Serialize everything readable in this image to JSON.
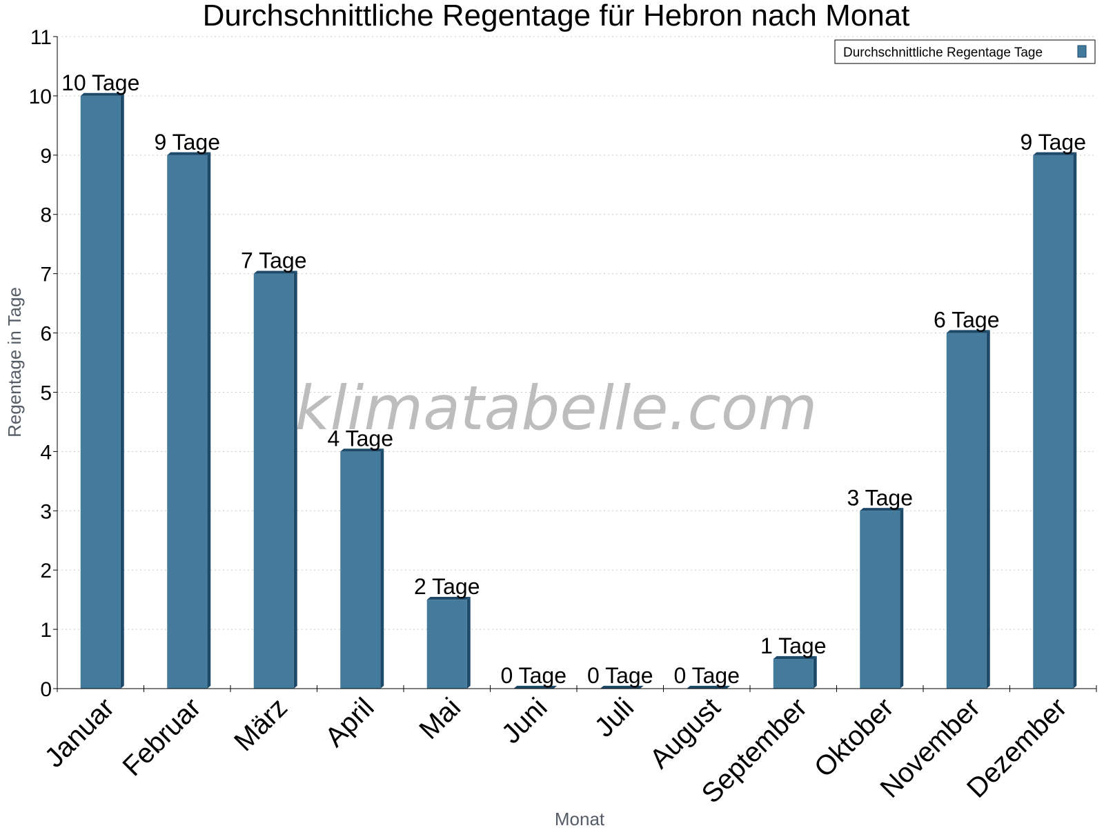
{
  "watermark": "klimatabelle.com",
  "colors": {
    "bar_face": "#447a9c",
    "bar_side": "#1e4a6a",
    "bar_top": "#1e4a6a",
    "grid": "#c8c8c8",
    "axis": "#000000"
  },
  "chart_data": {
    "type": "bar",
    "title": "Durchschnittliche Regentage für Hebron nach Monat",
    "xlabel": "Monat",
    "ylabel": "Regentage in Tage",
    "ylim": [
      0,
      11
    ],
    "yticks": [
      0,
      1,
      2,
      3,
      4,
      5,
      6,
      7,
      8,
      9,
      10,
      11
    ],
    "grid": true,
    "legend_position": "top-right",
    "categories": [
      "Januar",
      "Februar",
      "März",
      "April",
      "Mai",
      "Juni",
      "Juli",
      "August",
      "September",
      "Oktober",
      "November",
      "Dezember"
    ],
    "series": [
      {
        "name": "Durchschnittliche Regentage Tage",
        "values": [
          10,
          9,
          7,
          4,
          1.5,
          0,
          0,
          0,
          0.5,
          3,
          6,
          9
        ],
        "labels": [
          "10 Tage",
          "9 Tage",
          "7 Tage",
          "4 Tage",
          "2 Tage",
          "0 Tage",
          "0 Tage",
          "0 Tage",
          "1 Tage",
          "3 Tage",
          "6 Tage",
          "9 Tage"
        ]
      }
    ]
  }
}
